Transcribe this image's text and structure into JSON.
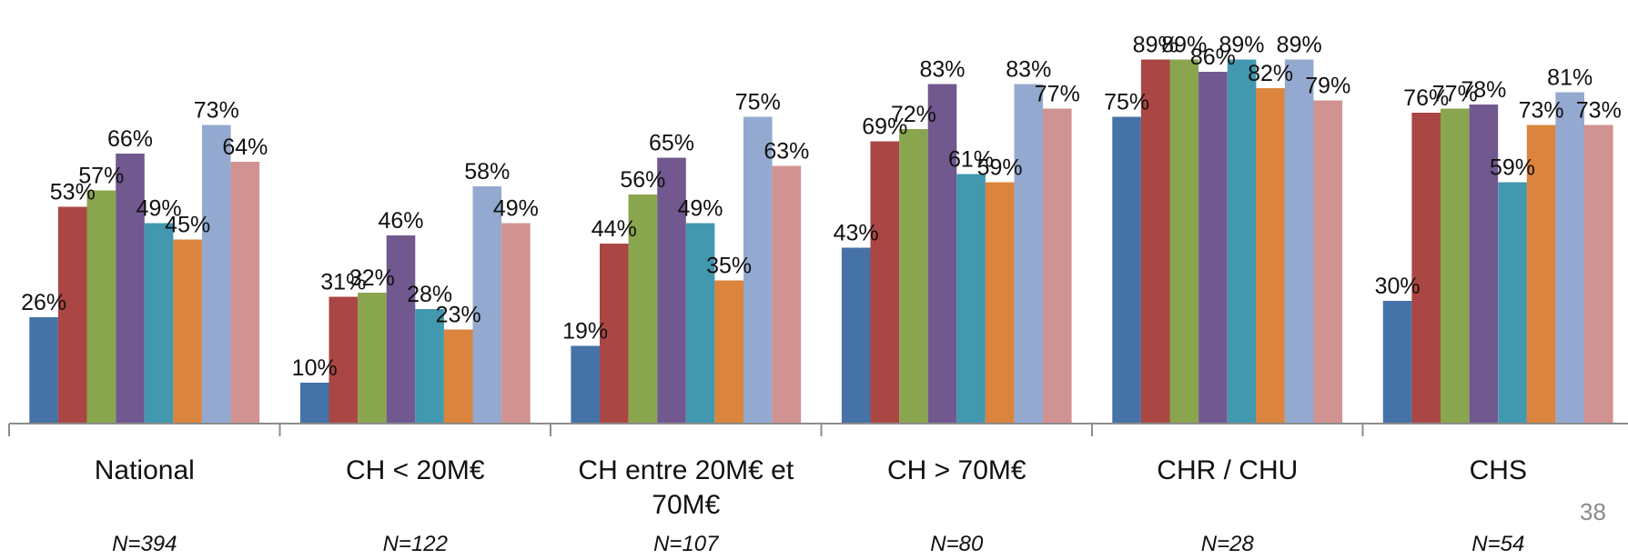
{
  "chart_data": {
    "type": "bar",
    "categories": [
      {
        "label_lines": [
          "National"
        ],
        "n": "N=394"
      },
      {
        "label_lines": [
          "CH < 20M€"
        ],
        "n": "N=122"
      },
      {
        "label_lines": [
          "CH  entre 20M€ et",
          "70M€"
        ],
        "n": "N=107"
      },
      {
        "label_lines": [
          "CH > 70M€"
        ],
        "n": "N=80"
      },
      {
        "label_lines": [
          "CHR / CHU"
        ],
        "n": "N=28"
      },
      {
        "label_lines": [
          "CHS"
        ],
        "n": "N=54"
      }
    ],
    "series": [
      {
        "color": "#4572a7",
        "values": [
          26,
          10,
          19,
          43,
          75,
          30
        ]
      },
      {
        "color": "#aa4643",
        "values": [
          53,
          31,
          44,
          69,
          89,
          76
        ]
      },
      {
        "color": "#89a54e",
        "values": [
          57,
          32,
          56,
          72,
          89,
          77
        ]
      },
      {
        "color": "#71588f",
        "values": [
          66,
          46,
          65,
          83,
          86,
          78
        ]
      },
      {
        "color": "#4198af",
        "values": [
          49,
          28,
          49,
          61,
          89,
          59
        ]
      },
      {
        "color": "#db843d",
        "values": [
          45,
          23,
          35,
          59,
          82,
          73
        ]
      },
      {
        "color": "#93a9cf",
        "values": [
          73,
          58,
          75,
          83,
          89,
          81
        ]
      },
      {
        "color": "#d19392",
        "values": [
          64,
          49,
          63,
          77,
          79,
          73
        ]
      }
    ],
    "value_suffix": "%",
    "ylim": [
      0,
      100
    ],
    "grid": false,
    "legend": "none"
  },
  "page": {
    "number": "38"
  }
}
